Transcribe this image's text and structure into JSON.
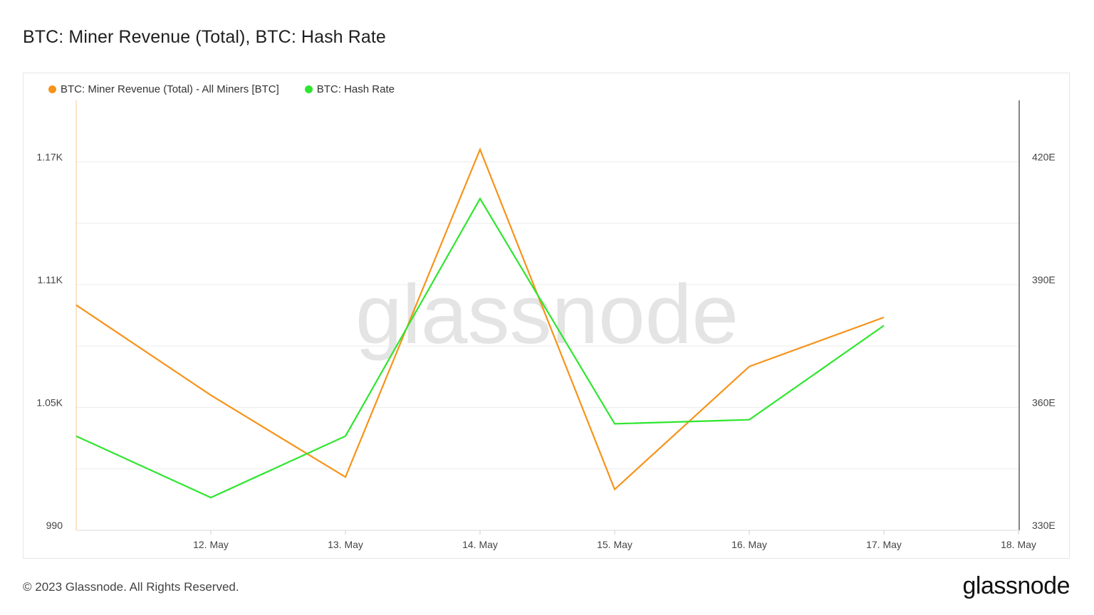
{
  "title": "BTC: Miner Revenue (Total), BTC: Hash Rate",
  "footer": {
    "copyright": "© 2023 Glassnode. All Rights Reserved.",
    "logo_text": "glassnode"
  },
  "watermark": "glassnode",
  "colors": {
    "revenue": "#f7931a",
    "hashrate": "#2ee62e",
    "grid": "#ececec",
    "right_axis": "#333333"
  },
  "chart_data": {
    "type": "line",
    "x": [
      "11. May",
      "12. May",
      "13. May",
      "14. May",
      "15. May",
      "16. May",
      "17. May"
    ],
    "x_tick_labels": [
      "12. May",
      "13. May",
      "14. May",
      "15. May",
      "16. May",
      "17. May",
      "18. May"
    ],
    "xlim": [
      "11. May",
      "18. May"
    ],
    "legend_placement": "top-left",
    "grid": true,
    "y_left": {
      "ylim": [
        990,
        1200
      ],
      "tick_values": [
        990,
        1050,
        1110,
        1170
      ],
      "tick_labels": [
        "990",
        "1.05K",
        "1.11K",
        "1.17K"
      ]
    },
    "y_right": {
      "ylim": [
        330,
        435
      ],
      "tick_values": [
        330,
        360,
        390,
        420
      ],
      "tick_labels": [
        "330E",
        "360E",
        "390E",
        "420E"
      ]
    },
    "series": [
      {
        "name": "BTC: Miner Revenue (Total) - All Miners [BTC]",
        "axis": "left",
        "values": [
          1100,
          1056,
          1016,
          1176,
          1010,
          1070,
          1094
        ]
      },
      {
        "name": "BTC: Hash Rate",
        "axis": "right",
        "values": [
          353,
          338,
          353,
          411,
          356,
          357,
          380
        ]
      }
    ]
  }
}
